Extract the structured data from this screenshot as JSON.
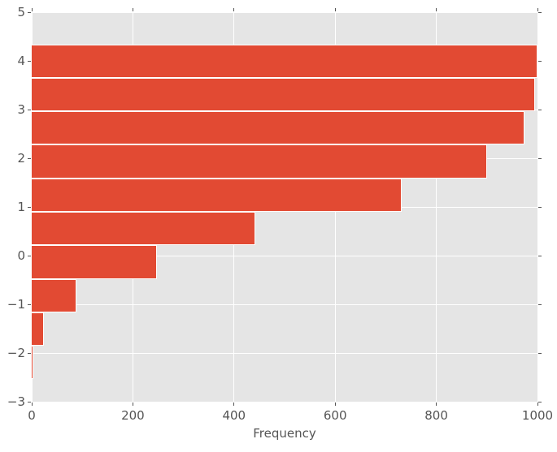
{
  "chart_data": {
    "type": "bar",
    "orientation": "horizontal",
    "title": "",
    "xlabel": "Frequency",
    "ylabel": "",
    "xlim": [
      0,
      1000
    ],
    "ylim": [
      -3,
      5
    ],
    "x_ticks": [
      0,
      200,
      400,
      600,
      800,
      1000
    ],
    "x_tick_labels": [
      "0",
      "200",
      "400",
      "600",
      "800",
      "1000"
    ],
    "y_ticks": [
      5,
      4,
      3,
      2,
      1,
      0,
      -1,
      -2,
      -3
    ],
    "y_tick_labels": [
      "5",
      "4",
      "3",
      "2",
      "1",
      "0",
      "−1",
      "−2",
      "−3"
    ],
    "grid": true,
    "legend": false,
    "bars": [
      {
        "bin_low": 3.65,
        "bin_high": 4.34,
        "count": 1000
      },
      {
        "bin_low": 2.96,
        "bin_high": 3.65,
        "count": 995
      },
      {
        "bin_low": 2.28,
        "bin_high": 2.96,
        "count": 975
      },
      {
        "bin_low": 1.59,
        "bin_high": 2.28,
        "count": 900
      },
      {
        "bin_low": 0.9,
        "bin_high": 1.59,
        "count": 731
      },
      {
        "bin_low": 0.21,
        "bin_high": 0.9,
        "count": 442
      },
      {
        "bin_low": -0.48,
        "bin_high": 0.21,
        "count": 247
      },
      {
        "bin_low": -1.16,
        "bin_high": -0.48,
        "count": 88
      },
      {
        "bin_low": -1.85,
        "bin_high": -1.16,
        "count": 24
      },
      {
        "bin_low": -2.54,
        "bin_high": -1.85,
        "count": 4
      }
    ],
    "colors": {
      "bar": "#E24A33",
      "plot_background": "#E5E5E5",
      "grid": "#FFFFFF",
      "tick_text": "#555555",
      "figure_background": "#FFFFFF"
    }
  }
}
